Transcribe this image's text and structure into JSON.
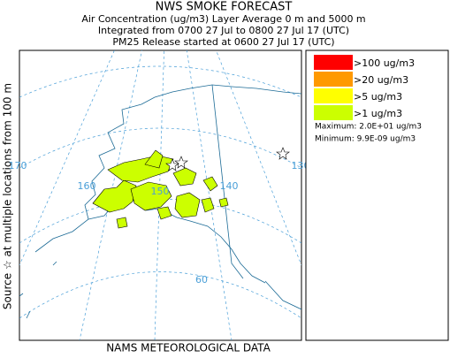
{
  "header": {
    "title": "NWS SMOKE FORECAST",
    "lines": [
      "Air Concentration (ug/m3) Layer Average    0 m and  5000 m",
      "Integrated from 0700 27 Jul to 0800 27 Jul 17 (UTC)",
      "PM25 Release started at 0600 27 Jul 17 (UTC)"
    ]
  },
  "legend": {
    "items": [
      {
        "label": ">100 ug/m3",
        "color": "#ff0000"
      },
      {
        "label": ">20 ug/m3",
        "color": "#ff9900"
      },
      {
        "label": ">5 ug/m3",
        "color": "#ffff00"
      },
      {
        "label": ">1 ug/m3",
        "color": "#ccff00"
      }
    ],
    "maximum": "Maximum: 2.0E+01 ug/m3",
    "minimum": "Minimum: 9.9E-09 ug/m3"
  },
  "map": {
    "side_label": "Source ☆ at multiple locations   from   100 m",
    "footer": "NAMS METEOROLOGICAL DATA",
    "grid_labels": [
      "170",
      "160",
      "150",
      "140",
      "130",
      "60"
    ]
  }
}
